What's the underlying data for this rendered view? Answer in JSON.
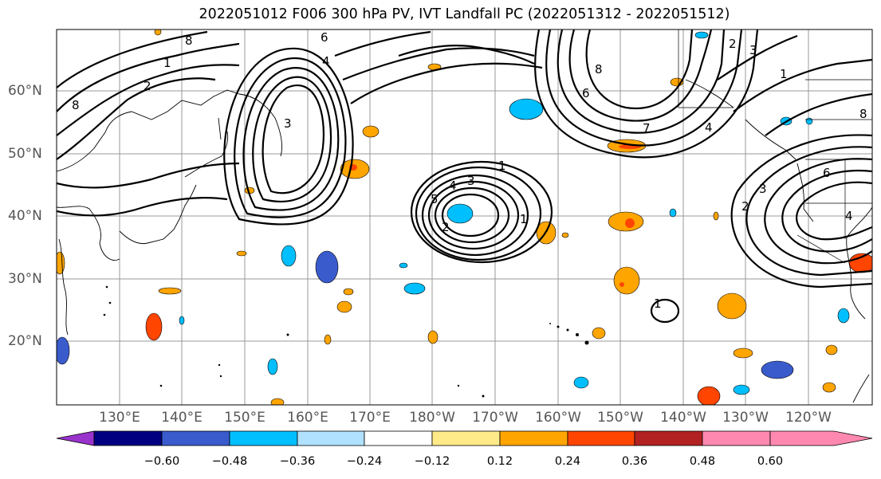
{
  "title": "2022051012 F006 300 hPa PV, IVT Landfall PC (2022051312 - 2022051512)",
  "lat_labels": [
    "60°N",
    "50°N",
    "40°N",
    "30°N",
    "20°N"
  ],
  "lon_labels": [
    "130°E",
    "140°E",
    "150°E",
    "160°E",
    "170°E",
    "180°W",
    "170°W",
    "160°W",
    "150°W",
    "140°W",
    "130°W",
    "120°W"
  ],
  "colorbar": {
    "tick_labels": [
      "−0.60",
      "−0.48",
      "−0.36",
      "−0.24",
      "−0.12",
      "0.12",
      "0.24",
      "0.36",
      "0.48",
      "0.60"
    ],
    "colors": [
      "#9933cc",
      "#000080",
      "#3a5bcc",
      "#00bfff",
      "#b0e2ff",
      "#ffffff",
      "#ffea8a",
      "#ffa500",
      "#ff4500",
      "#b22222",
      "#ff88b0"
    ]
  },
  "contour_labels": [
    "8",
    "6",
    "1",
    "4",
    "8",
    "2",
    "3",
    "1",
    "5",
    "4",
    "3",
    "1",
    "2",
    "6",
    "8",
    "7",
    "4",
    "2",
    "3",
    "1",
    "6",
    "3",
    "4",
    "8",
    "1",
    "2"
  ]
}
